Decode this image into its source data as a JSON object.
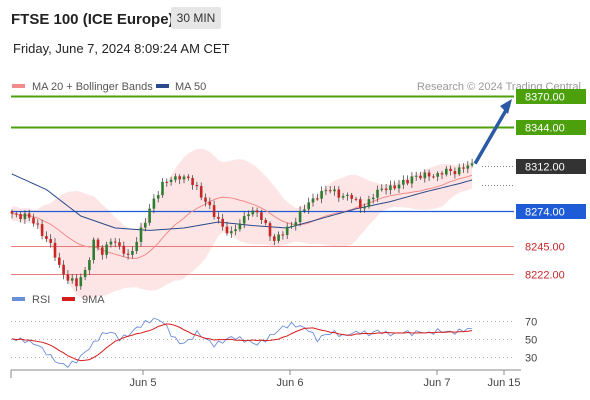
{
  "header": {
    "title": "FTSE 100 (ICE Europe)",
    "timeframe": "30 MIN",
    "datetime": "Friday, June 7, 2024 8:09:24 AM CET",
    "credit": "Research © 2024 Trading Central"
  },
  "legend": {
    "ma20": "MA 20 + Bollinger Bands",
    "ma50": "MA 50",
    "rsi": "RSI",
    "rsi_ma": "9MA"
  },
  "colors": {
    "resistance": "#4ca00b",
    "pivot": "#1e5bd6",
    "support": "#e35252",
    "last_price": "#333333",
    "candle_up": "#2e7d32",
    "candle_down": "#c62828",
    "ma20": "#f28b8b",
    "bollinger_fill": "#fde2e2",
    "ma50": "#2b4a8b",
    "rsi": "#6b8fd9",
    "rsi_ma": "#d81b1b",
    "arrow": "#2a5aa5"
  },
  "chart_data": {
    "type": "candlestick",
    "price_levels": [
      {
        "value": "8370.00",
        "kind": "resistance"
      },
      {
        "value": "8344.00",
        "kind": "resistance"
      },
      {
        "value": "8312.00",
        "kind": "last"
      },
      {
        "value": "8274.00",
        "kind": "pivot"
      },
      {
        "value": "8245.00",
        "kind": "support"
      },
      {
        "value": "8222.00",
        "kind": "support"
      }
    ],
    "price_range": [
      8200,
      8380
    ],
    "x_ticks": [
      "Jun 5",
      "Jun 6",
      "Jun 7",
      "Jun 15"
    ],
    "close_path": [
      [
        0,
        8272
      ],
      [
        3,
        8270
      ],
      [
        6,
        8262
      ],
      [
        9,
        8245
      ],
      [
        11,
        8228
      ],
      [
        13,
        8218
      ],
      [
        15,
        8212
      ],
      [
        17,
        8225
      ],
      [
        19,
        8248
      ],
      [
        21,
        8238
      ],
      [
        23,
        8252
      ],
      [
        25,
        8243
      ],
      [
        27,
        8236
      ],
      [
        29,
        8250
      ],
      [
        31,
        8265
      ],
      [
        33,
        8285
      ],
      [
        35,
        8296
      ],
      [
        37,
        8300
      ],
      [
        39,
        8304
      ],
      [
        41,
        8300
      ],
      [
        43,
        8293
      ],
      [
        45,
        8283
      ],
      [
        47,
        8270
      ],
      [
        49,
        8262
      ],
      [
        51,
        8255
      ],
      [
        53,
        8263
      ],
      [
        55,
        8275
      ],
      [
        57,
        8272
      ],
      [
        59,
        8262
      ],
      [
        61,
        8250
      ],
      [
        63,
        8255
      ],
      [
        65,
        8263
      ],
      [
        67,
        8272
      ],
      [
        69,
        8280
      ],
      [
        71,
        8288
      ],
      [
        73,
        8291
      ],
      [
        75,
        8290
      ],
      [
        77,
        8287
      ],
      [
        79,
        8285
      ],
      [
        81,
        8278
      ],
      [
        83,
        8282
      ],
      [
        85,
        8290
      ],
      [
        87,
        8295
      ],
      [
        89,
        8293
      ],
      [
        91,
        8298
      ],
      [
        93,
        8303
      ],
      [
        95,
        8302
      ],
      [
        97,
        8305
      ],
      [
        99,
        8304
      ],
      [
        101,
        8307
      ],
      [
        103,
        8308
      ],
      [
        105,
        8310
      ],
      [
        107,
        8312
      ]
    ],
    "ma50_path": [
      [
        0,
        8305
      ],
      [
        8,
        8292
      ],
      [
        16,
        8270
      ],
      [
        24,
        8260
      ],
      [
        32,
        8258
      ],
      [
        40,
        8260
      ],
      [
        48,
        8265
      ],
      [
        56,
        8262
      ],
      [
        64,
        8260
      ],
      [
        72,
        8268
      ],
      [
        80,
        8276
      ],
      [
        88,
        8282
      ],
      [
        96,
        8290
      ],
      [
        104,
        8297
      ],
      [
        107,
        8300
      ]
    ],
    "rsi": {
      "ticks": [
        70,
        50,
        30
      ],
      "range": [
        15,
        80
      ],
      "path": [
        [
          0,
          50
        ],
        [
          3,
          48
        ],
        [
          6,
          43
        ],
        [
          9,
          30
        ],
        [
          11,
          22
        ],
        [
          13,
          20
        ],
        [
          15,
          25
        ],
        [
          17,
          35
        ],
        [
          19,
          45
        ],
        [
          21,
          55
        ],
        [
          23,
          58
        ],
        [
          25,
          50
        ],
        [
          27,
          54
        ],
        [
          29,
          62
        ],
        [
          31,
          68
        ],
        [
          33,
          72
        ],
        [
          35,
          70
        ],
        [
          37,
          55
        ],
        [
          39,
          45
        ],
        [
          41,
          47
        ],
        [
          43,
          57
        ],
        [
          45,
          50
        ],
        [
          47,
          43
        ],
        [
          49,
          47
        ],
        [
          51,
          52
        ],
        [
          53,
          50
        ],
        [
          55,
          47
        ],
        [
          57,
          44
        ],
        [
          59,
          49
        ],
        [
          61,
          56
        ],
        [
          63,
          63
        ],
        [
          65,
          66
        ],
        [
          67,
          64
        ],
        [
          69,
          60
        ],
        [
          71,
          49
        ],
        [
          73,
          55
        ],
        [
          75,
          57
        ],
        [
          77,
          53
        ],
        [
          79,
          56
        ],
        [
          81,
          58
        ],
        [
          83,
          55
        ],
        [
          85,
          59
        ],
        [
          87,
          56
        ],
        [
          89,
          55
        ],
        [
          91,
          58
        ],
        [
          93,
          56
        ],
        [
          95,
          58
        ],
        [
          97,
          56
        ],
        [
          99,
          59
        ],
        [
          101,
          58
        ],
        [
          103,
          57
        ],
        [
          105,
          60
        ],
        [
          107,
          61
        ]
      ]
    }
  }
}
